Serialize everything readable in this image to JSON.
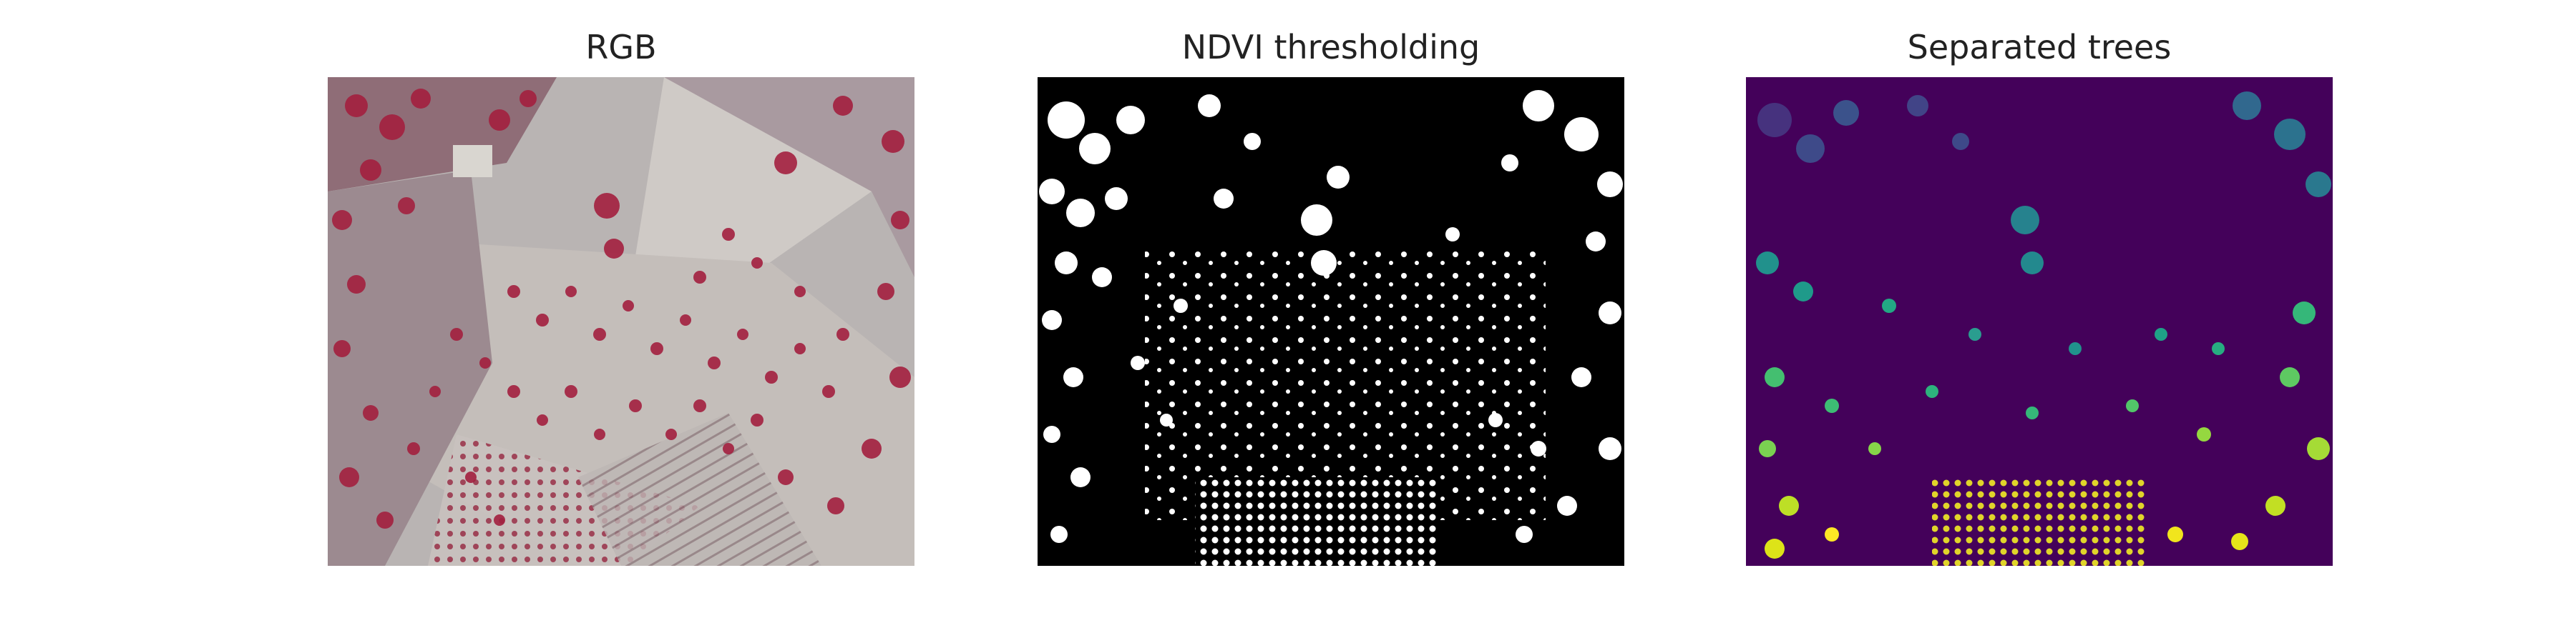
{
  "panels": [
    {
      "title": "RGB"
    },
    {
      "title": "NDVI thresholding"
    },
    {
      "title": "Separated trees"
    }
  ]
}
